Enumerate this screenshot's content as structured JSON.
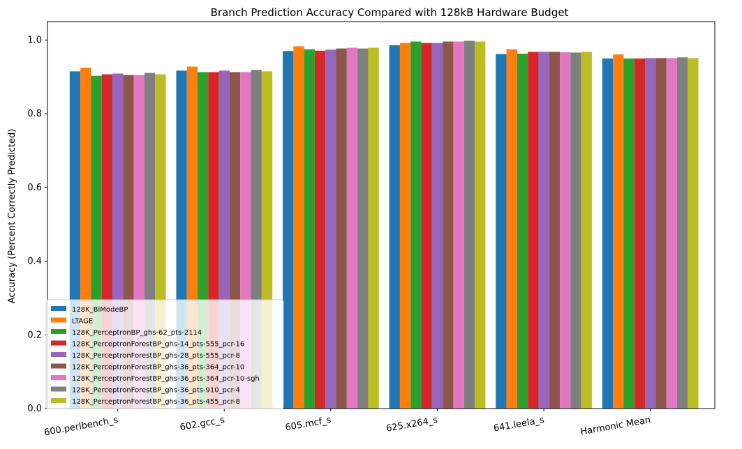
{
  "chart_data": {
    "type": "bar",
    "title": "Branch Prediction Accuracy Compared with 128kB Hardware Budget",
    "xlabel": "",
    "ylabel": "Accuracy (Percent Correctly Predicted)",
    "ylim": [
      0,
      1.05
    ],
    "yticks": [
      "0.0",
      "0.2",
      "0.4",
      "0.6",
      "0.8",
      "1.0"
    ],
    "grid": false,
    "legend_position": "lower-left",
    "categories": [
      "600.perlbench_s",
      "602.gcc_s",
      "605.mcf_s",
      "625.x264_s",
      "641.leela_s",
      "Harmonic Mean"
    ],
    "series": [
      {
        "name": "128K_BiModeBP",
        "color": "#1f77b4",
        "values": [
          0.915,
          0.917,
          0.97,
          0.986,
          0.962,
          0.95
        ]
      },
      {
        "name": "LTAGE",
        "color": "#ff7f0e",
        "values": [
          0.925,
          0.928,
          0.983,
          0.992,
          0.975,
          0.961
        ]
      },
      {
        "name": "128K_PerceptronBP_ghs-62_pts-2114",
        "color": "#2ca02c",
        "values": [
          0.903,
          0.913,
          0.975,
          0.996,
          0.963,
          0.95
        ]
      },
      {
        "name": "128K_PerceptronForestBP_ghs-14_pts-555_pcr-16",
        "color": "#d62728",
        "values": [
          0.907,
          0.913,
          0.971,
          0.992,
          0.968,
          0.95
        ]
      },
      {
        "name": "128K_PerceptronForestBP_ghs-28_pts-555_pcr-8",
        "color": "#9467bd",
        "values": [
          0.909,
          0.917,
          0.974,
          0.992,
          0.968,
          0.951
        ]
      },
      {
        "name": "128K_PerceptronForestBP_ghs-36_pts-364_pcr-10",
        "color": "#8c564b",
        "values": [
          0.905,
          0.913,
          0.977,
          0.996,
          0.968,
          0.951
        ]
      },
      {
        "name": "128K_PerceptronForestBP_ghs-36_pts-364_pcr-10-sgh",
        "color": "#e377c2",
        "values": [
          0.905,
          0.913,
          0.979,
          0.996,
          0.967,
          0.951
        ]
      },
      {
        "name": "128K_PerceptronForestBP_ghs-36_pts-910_pcr-4",
        "color": "#7f7f7f",
        "values": [
          0.911,
          0.919,
          0.977,
          0.998,
          0.966,
          0.953
        ]
      },
      {
        "name": "128K_PerceptronForestBP_ghs-36_pts-455_pcr-8",
        "color": "#bcbd22",
        "values": [
          0.907,
          0.915,
          0.979,
          0.996,
          0.968,
          0.951
        ]
      }
    ]
  }
}
